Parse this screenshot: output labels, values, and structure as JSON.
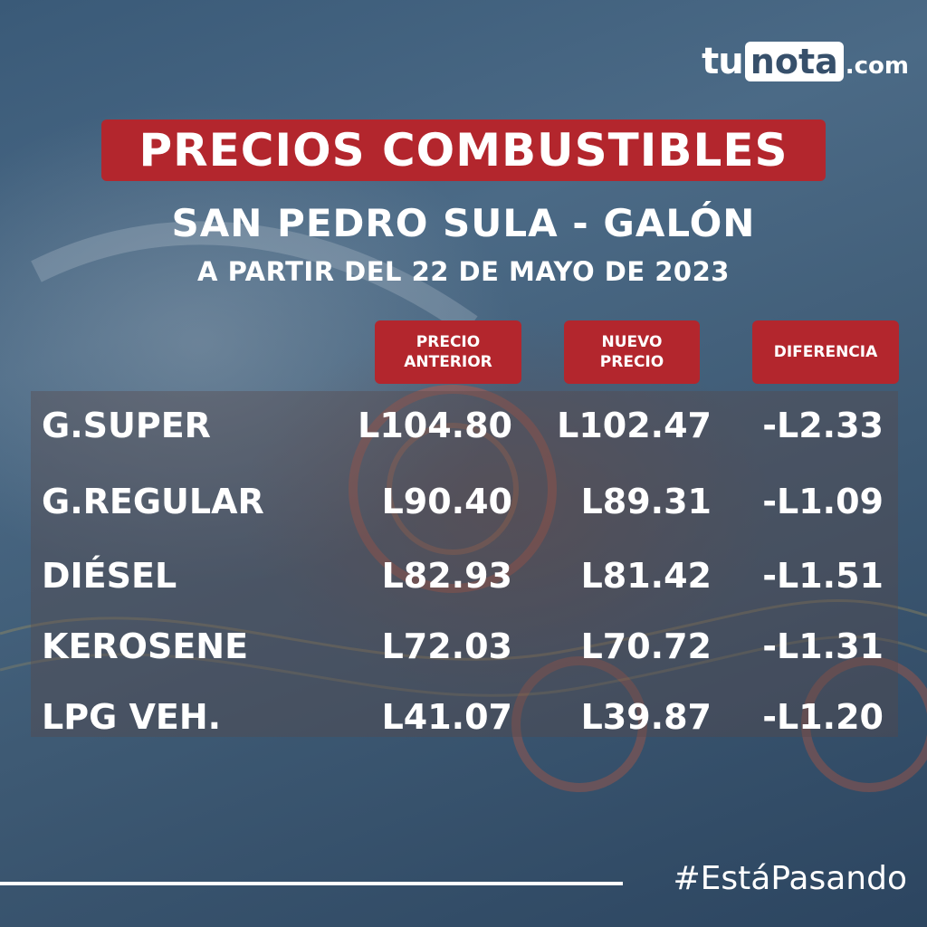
{
  "logo": {
    "part1": "tu",
    "part2": "nota",
    "part3": ".com"
  },
  "title": "PRECIOS COMBUSTIBLES",
  "subtitle": "SAN PEDRO SULA - GALÓN",
  "date": "A PARTIR DEL 22 DE MAYO DE 2023",
  "columns": [
    "PRECIO\nANTERIOR",
    "NUEVO\nPRECIO",
    "DIFERENCIA"
  ],
  "rows": [
    {
      "fuel": "G.SUPER",
      "previous": "L104.80",
      "new": "L102.47",
      "difference": "-L2.33"
    },
    {
      "fuel": "G.REGULAR",
      "previous": "L90.40",
      "new": "L89.31",
      "difference": "-L1.09"
    },
    {
      "fuel": "DIÉSEL",
      "previous": "L82.93",
      "new": "L81.42",
      "difference": "-L1.51"
    },
    {
      "fuel": "KEROSENE",
      "previous": "L72.03",
      "new": "L70.72",
      "difference": "-L1.31"
    },
    {
      "fuel": "LPG VEH.",
      "previous": "L41.07",
      "new": "L39.87",
      "difference": "-L1.20"
    }
  ],
  "hashtag": "#EstáPasando",
  "colors": {
    "accent_red": "#b3262d",
    "background_blue": "#3e5a74",
    "text": "#ffffff"
  }
}
